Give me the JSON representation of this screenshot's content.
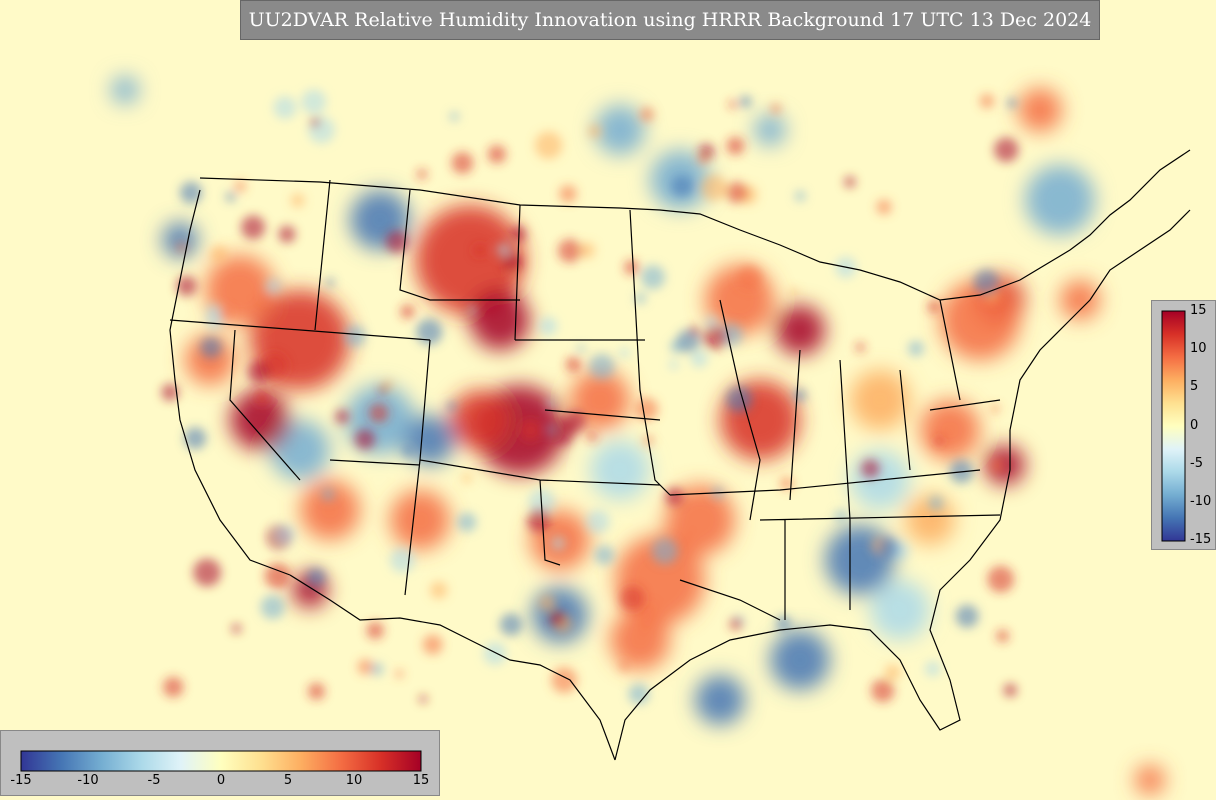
{
  "title": "UU2DVAR Relative Humidity Innovation using HRRR Background 17 UTC 13 Dec 2024",
  "colorbar": {
    "min": -15,
    "max": 15,
    "vertical_ticks": [
      "15",
      "10",
      "5",
      "0",
      "-5",
      "-10",
      "-15"
    ],
    "horizontal_ticks": [
      "-15",
      "-10",
      "-5",
      "0",
      "5",
      "10",
      "15"
    ],
    "colors": [
      "#313695",
      "#4575b4",
      "#74add1",
      "#abd9e9",
      "#e0f3f8",
      "#ffffbf",
      "#fee090",
      "#fdae61",
      "#f46d43",
      "#d73027",
      "#a50026"
    ]
  },
  "map": {
    "background_color": "#fffac8",
    "border_color": "#000000",
    "region": "Continental United States"
  }
}
